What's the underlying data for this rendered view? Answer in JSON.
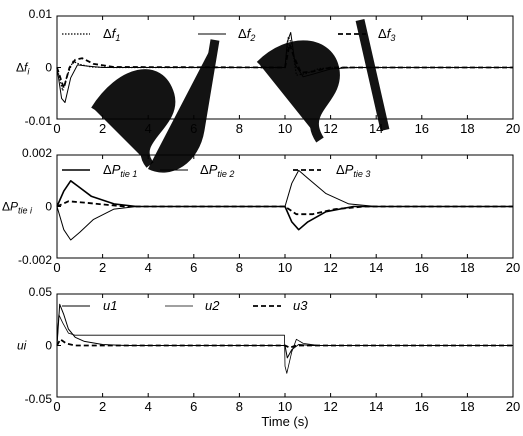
{
  "chart_data": [
    {
      "type": "line",
      "ylabel": "Δf_i",
      "ylim": [
        -0.01,
        0.01
      ],
      "xlim": [
        0,
        20
      ],
      "yticks": [
        -0.01,
        0,
        0.01
      ],
      "ytick_labels": [
        "-0.01",
        "0",
        "0.01"
      ],
      "xticks": [
        0,
        2,
        4,
        6,
        8,
        10,
        12,
        14,
        16,
        18,
        20
      ],
      "xtick_labels": [
        "0",
        "2",
        "4",
        "6",
        "8",
        "10",
        "12",
        "14",
        "16",
        "18",
        "20"
      ],
      "grid": false,
      "legend": "top",
      "series": [
        {
          "name": "Δf_1",
          "style": "dotted",
          "points": [
            [
              0,
              0
            ],
            [
              0.25,
              -0.0045
            ],
            [
              0.45,
              -0.0015
            ],
            [
              0.7,
              0.0012
            ],
            [
              1.0,
              0.0006
            ],
            [
              1.5,
              0.0001
            ],
            [
              2.5,
              0
            ],
            [
              10,
              0
            ],
            [
              10.15,
              0.006
            ],
            [
              10.3,
              0.0045
            ],
            [
              10.5,
              -0.0015
            ],
            [
              10.9,
              -0.0012
            ],
            [
              11.5,
              -0.0002
            ],
            [
              12.5,
              0
            ],
            [
              20,
              0
            ]
          ]
        },
        {
          "name": "Δf_2",
          "style": "solid",
          "points": [
            [
              0,
              0
            ],
            [
              0.2,
              -0.006
            ],
            [
              0.35,
              -0.0068
            ],
            [
              0.6,
              -0.002
            ],
            [
              0.9,
              0.0005
            ],
            [
              1.3,
              0.0003
            ],
            [
              2,
              0
            ],
            [
              10,
              0
            ],
            [
              10.1,
              0.005
            ],
            [
              10.25,
              0.0068
            ],
            [
              10.45,
              0.0005
            ],
            [
              10.8,
              -0.0018
            ],
            [
              11.3,
              -0.0012
            ],
            [
              12,
              -0.0003
            ],
            [
              13,
              0
            ],
            [
              20,
              0
            ]
          ]
        },
        {
          "name": "Δf_3",
          "style": "dashed",
          "points": [
            [
              0,
              0
            ],
            [
              0.3,
              -0.004
            ],
            [
              0.55,
              0
            ],
            [
              0.8,
              0.0015
            ],
            [
              1.1,
              0.0018
            ],
            [
              1.6,
              0.0007
            ],
            [
              2.5,
              0.0001
            ],
            [
              10,
              0
            ],
            [
              10.2,
              0.0045
            ],
            [
              10.4,
              0.002
            ],
            [
              10.7,
              -0.001
            ],
            [
              11.2,
              -0.0008
            ],
            [
              12,
              0
            ],
            [
              20,
              0
            ]
          ]
        }
      ]
    },
    {
      "type": "line",
      "ylabel": "ΔP_tie i",
      "ylim": [
        -0.002,
        0.002
      ],
      "xlim": [
        0,
        20
      ],
      "yticks": [
        -0.002,
        0,
        0.002
      ],
      "ytick_labels": [
        "-0.002",
        "0",
        "0.002"
      ],
      "xticks": [
        0,
        2,
        4,
        6,
        8,
        10,
        12,
        14,
        16,
        18,
        20
      ],
      "xtick_labels": [
        "0",
        "2",
        "4",
        "6",
        "8",
        "10",
        "12",
        "14",
        "16",
        "18",
        "20"
      ],
      "grid": false,
      "legend": "top",
      "series": [
        {
          "name": "ΔP_tie 1",
          "style": "solid-thick",
          "points": [
            [
              0,
              0
            ],
            [
              0.3,
              0.0006
            ],
            [
              0.6,
              0.001
            ],
            [
              0.9,
              0.0008
            ],
            [
              1.5,
              0.0004
            ],
            [
              2.5,
              0.0001
            ],
            [
              3.5,
              0
            ],
            [
              10,
              0
            ],
            [
              10.3,
              -0.0006
            ],
            [
              10.6,
              -0.0009
            ],
            [
              11.0,
              -0.0006
            ],
            [
              11.8,
              -0.0002
            ],
            [
              13,
              0
            ],
            [
              20,
              0
            ]
          ]
        },
        {
          "name": "ΔP_tie 2",
          "style": "solid",
          "points": [
            [
              0,
              0
            ],
            [
              0.3,
              -0.0009
            ],
            [
              0.6,
              -0.0013
            ],
            [
              1.0,
              -0.001
            ],
            [
              1.6,
              -0.0005
            ],
            [
              2.5,
              -0.0001
            ],
            [
              3.5,
              0
            ],
            [
              10,
              0
            ],
            [
              10.3,
              0.0009
            ],
            [
              10.6,
              0.0014
            ],
            [
              11.0,
              0.0011
            ],
            [
              11.8,
              0.0005
            ],
            [
              12.8,
              0.0001
            ],
            [
              14,
              0
            ],
            [
              20,
              0
            ]
          ]
        },
        {
          "name": "ΔP_tie 3",
          "style": "dashed",
          "points": [
            [
              0,
              0
            ],
            [
              0.5,
              0.0002
            ],
            [
              1.2,
              0.00015
            ],
            [
              2.0,
              8e-05
            ],
            [
              3.0,
              0
            ],
            [
              10,
              0
            ],
            [
              10.5,
              -0.0003
            ],
            [
              11.2,
              -0.0003
            ],
            [
              12.2,
              -0.0001
            ],
            [
              13.5,
              0
            ],
            [
              20,
              0
            ]
          ]
        }
      ]
    },
    {
      "type": "line",
      "ylabel": "ui",
      "xlabel": "Time (s)",
      "ylim": [
        -0.05,
        0.05
      ],
      "xlim": [
        0,
        20
      ],
      "yticks": [
        -0.05,
        0,
        0.05
      ],
      "ytick_labels": [
        "-0.05",
        "0",
        "0.05"
      ],
      "xticks": [
        0,
        2,
        4,
        6,
        8,
        10,
        12,
        14,
        16,
        18,
        20
      ],
      "xtick_labels": [
        "0",
        "2",
        "4",
        "6",
        "8",
        "10",
        "12",
        "14",
        "16",
        "18",
        "20"
      ],
      "grid": false,
      "legend": "top",
      "series": [
        {
          "name": "u1",
          "style": "solid",
          "points": [
            [
              0,
              0
            ],
            [
              0.12,
              0.04
            ],
            [
              0.3,
              0.03
            ],
            [
              0.5,
              0.016
            ],
            [
              0.8,
              0.008
            ],
            [
              1.2,
              0.004
            ],
            [
              2,
              0.001
            ],
            [
              3,
              0
            ],
            [
              10,
              0
            ],
            [
              10.1,
              -0.012
            ],
            [
              10.3,
              -0.004
            ],
            [
              10.6,
              0.001
            ],
            [
              11.2,
              0
            ],
            [
              20,
              0
            ]
          ]
        },
        {
          "name": "u2",
          "style": "solid-thin",
          "points": [
            [
              0,
              0
            ],
            [
              0.08,
              0.03
            ],
            [
              0.25,
              0.022
            ],
            [
              0.5,
              0.012
            ],
            [
              0.8,
              0.01
            ],
            [
              2,
              0.01
            ],
            [
              6,
              0.01
            ],
            [
              9.98,
              0.01
            ],
            [
              10.0,
              -0.02
            ],
            [
              10.08,
              -0.027
            ],
            [
              10.3,
              -0.006
            ],
            [
              10.5,
              0.006
            ],
            [
              10.8,
              0.002
            ],
            [
              11.5,
              0
            ],
            [
              20,
              0
            ]
          ]
        },
        {
          "name": "u3",
          "style": "dashed",
          "points": [
            [
              0,
              0
            ],
            [
              0.15,
              0.006
            ],
            [
              0.4,
              0.002
            ],
            [
              0.8,
              0
            ],
            [
              10,
              0
            ],
            [
              10.2,
              -0.002
            ],
            [
              10.5,
              0
            ],
            [
              20,
              0
            ]
          ]
        }
      ]
    }
  ],
  "watermark": {
    "text": "sjsp",
    "color": "#000000"
  }
}
